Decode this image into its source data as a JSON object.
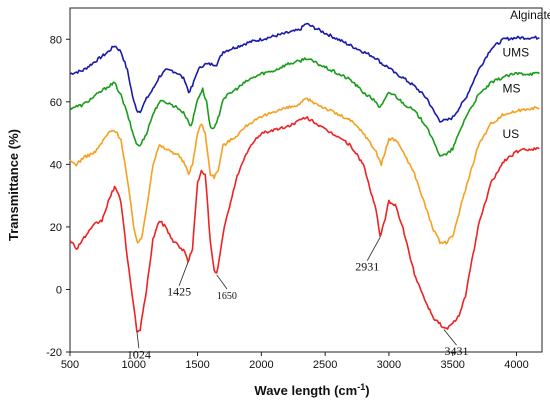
{
  "chart_data": {
    "type": "line",
    "xlabel": "Wave length (cm",
    "xlabel_sup": "-1",
    "xlabel_close": ")",
    "ylabel": "Transmittance (%)",
    "xlim": [
      500,
      4200
    ],
    "ylim": [
      -20,
      90
    ],
    "x_ticks": [
      "500",
      "1000",
      "1500",
      "2000",
      "2500",
      "3000",
      "3500",
      "4000"
    ],
    "x_tick_values": [
      500,
      1000,
      1500,
      2000,
      2500,
      3000,
      3500,
      4000
    ],
    "y_ticks": [
      "-20",
      "0",
      "20",
      "40",
      "60",
      "80"
    ],
    "y_tick_values": [
      -20,
      0,
      20,
      40,
      60,
      80
    ],
    "grid": false,
    "series": [
      {
        "name": "Alginate",
        "color": "#1a1aaa",
        "x": [
          500,
          600,
          700,
          800,
          850,
          900,
          950,
          1000,
          1030,
          1050,
          1100,
          1150,
          1200,
          1250,
          1300,
          1350,
          1400,
          1430,
          1460,
          1500,
          1550,
          1600,
          1650,
          1700,
          1800,
          1900,
          2000,
          2100,
          2200,
          2300,
          2350,
          2400,
          2500,
          2600,
          2700,
          2800,
          2900,
          2950,
          3000,
          3050,
          3100,
          3200,
          3300,
          3350,
          3400,
          3450,
          3500,
          3600,
          3700,
          3800,
          3900,
          4000,
          4100,
          4180
        ],
        "y": [
          69,
          70,
          73,
          76,
          78,
          76,
          70,
          60,
          57,
          57,
          61,
          64,
          68,
          70,
          70,
          69,
          67,
          63,
          65,
          70,
          72,
          72,
          72,
          76,
          77.5,
          79,
          80,
          81,
          82,
          83,
          85,
          84,
          82,
          80,
          78,
          76,
          74,
          72,
          71,
          69,
          68,
          65,
          61,
          57,
          54,
          54,
          55,
          61,
          70,
          77,
          80,
          80.5,
          80.5,
          80.5
        ]
      },
      {
        "name": "UMS",
        "color": "#1a9c1a",
        "x": [
          500,
          600,
          700,
          800,
          850,
          900,
          950,
          1000,
          1030,
          1050,
          1100,
          1150,
          1200,
          1250,
          1300,
          1350,
          1400,
          1450,
          1500,
          1540,
          1570,
          1600,
          1620,
          1650,
          1700,
          1800,
          1900,
          2000,
          2100,
          2200,
          2300,
          2350,
          2400,
          2500,
          2600,
          2700,
          2800,
          2900,
          2930,
          2960,
          3000,
          3050,
          3100,
          3200,
          3300,
          3350,
          3400,
          3450,
          3500,
          3600,
          3700,
          3800,
          3900,
          4000,
          4100,
          4180
        ],
        "y": [
          58,
          59,
          62,
          65,
          66,
          62,
          56,
          49,
          46,
          46,
          50,
          56,
          60,
          60,
          59,
          58,
          56,
          52,
          61,
          64,
          60,
          52,
          51,
          53,
          61,
          64,
          67,
          69,
          70,
          72,
          73,
          74,
          73,
          71,
          69,
          67,
          63,
          60,
          58,
          60,
          63,
          62,
          60,
          57,
          52,
          47,
          43,
          43,
          45,
          55,
          62,
          66,
          68,
          69,
          69,
          69
        ]
      },
      {
        "name": "MS",
        "color": "#f5a020",
        "x": [
          500,
          550,
          600,
          700,
          800,
          850,
          900,
          950,
          1000,
          1030,
          1060,
          1100,
          1150,
          1200,
          1250,
          1300,
          1350,
          1400,
          1430,
          1460,
          1500,
          1530,
          1560,
          1600,
          1630,
          1660,
          1700,
          1800,
          1900,
          2000,
          2100,
          2200,
          2300,
          2350,
          2400,
          2500,
          2600,
          2700,
          2800,
          2900,
          2940,
          2970,
          3000,
          3050,
          3100,
          3200,
          3300,
          3350,
          3400,
          3450,
          3500,
          3600,
          3700,
          3800,
          3900,
          4000,
          4100,
          4180
        ],
        "y": [
          41,
          40,
          42,
          44,
          50,
          51,
          48,
          35,
          20,
          15,
          16,
          26,
          40,
          46,
          45,
          44,
          43,
          40,
          37,
          40,
          50,
          53,
          50,
          37,
          36,
          38,
          46,
          49,
          53,
          55,
          57,
          58,
          59,
          61,
          60,
          58,
          56,
          54,
          50,
          44,
          40,
          44,
          48,
          48,
          45,
          37,
          25,
          19,
          15,
          15,
          17,
          32,
          46,
          53,
          56,
          57,
          58,
          58
        ]
      },
      {
        "name": "US",
        "color": "#ee2222",
        "x": [
          500,
          550,
          600,
          700,
          750,
          800,
          850,
          900,
          950,
          1000,
          1024,
          1050,
          1100,
          1150,
          1200,
          1250,
          1300,
          1350,
          1400,
          1425,
          1460,
          1500,
          1530,
          1560,
          1600,
          1630,
          1650,
          1680,
          1700,
          1800,
          1900,
          2000,
          2100,
          2200,
          2300,
          2350,
          2400,
          2500,
          2600,
          2700,
          2800,
          2900,
          2931,
          2960,
          3000,
          3050,
          3100,
          3200,
          3300,
          3350,
          3400,
          3431,
          3450,
          3500,
          3550,
          3600,
          3700,
          3800,
          3900,
          4000,
          4100,
          4180
        ],
        "y": [
          16,
          13,
          16,
          21,
          22,
          28,
          33,
          28,
          10,
          -6,
          -13,
          -13,
          0,
          16,
          22,
          20,
          16,
          14,
          12,
          9,
          13,
          34,
          38,
          37,
          15,
          6,
          5,
          12,
          18,
          35,
          45,
          50,
          51,
          52,
          54,
          55,
          54,
          51,
          49,
          46,
          40,
          25,
          17,
          21,
          28,
          27,
          21,
          5,
          -5,
          -9,
          -11,
          -12.5,
          -12.5,
          -11,
          -8,
          -2,
          20,
          34,
          41,
          44,
          45,
          45
        ]
      }
    ],
    "series_labels": [
      {
        "text": "Alginate",
        "x": 3950,
        "y": 86.5
      },
      {
        "text": "UMS",
        "x": 3890,
        "y": 74.5
      },
      {
        "text": "MS",
        "x": 3890,
        "y": 63
      },
      {
        "text": "US",
        "x": 3890,
        "y": 48.5
      }
    ],
    "annotations": [
      {
        "text": "1024",
        "x": 1024,
        "y": -13,
        "tx": 1040,
        "ty": -22
      },
      {
        "text": "1425",
        "x": 1425,
        "y": 9,
        "tx": 1355,
        "ty": -2
      },
      {
        "text": "1650",
        "x": 1650,
        "y": 5,
        "tx": 1730,
        "ty": -3
      },
      {
        "text": "2931",
        "x": 2931,
        "y": 17,
        "tx": 2830,
        "ty": 6
      },
      {
        "text": "3431",
        "x": 3431,
        "y": -12.5,
        "tx": 3530,
        "ty": -21
      }
    ]
  }
}
